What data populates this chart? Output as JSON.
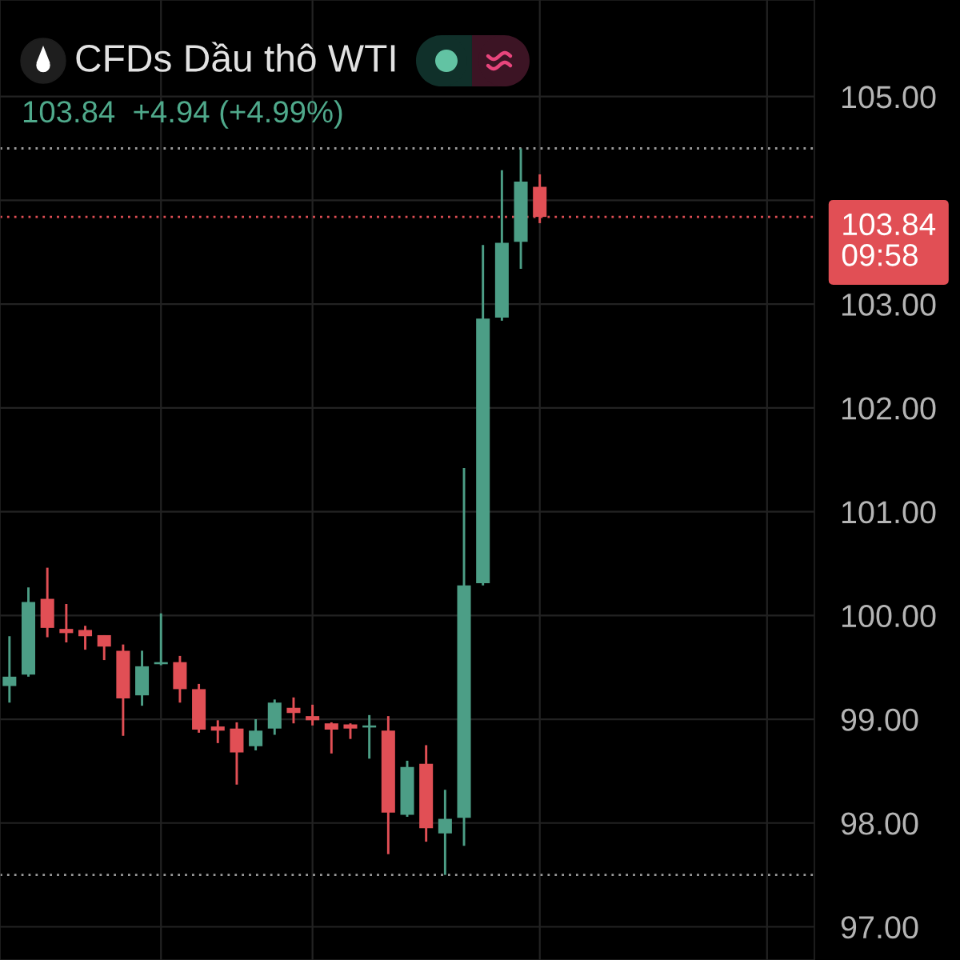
{
  "chart_data": {
    "type": "candlestick",
    "title": "CFDs Dầu thô WTI",
    "subtitle": "103.84  +4.94 (+4.99%)",
    "categories": [
      null,
      null,
      null,
      null,
      null,
      null,
      null,
      null,
      null,
      null,
      null,
      null,
      null,
      null,
      null,
      null,
      null,
      null,
      null,
      null,
      null,
      null,
      null,
      null,
      null,
      null,
      null,
      null,
      null,
      null,
      null,
      null,
      null,
      null,
      null,
      null,
      null,
      null,
      null,
      null,
      null,
      null,
      null
    ],
    "ohlc": [
      [
        99.32,
        99.8,
        99.16,
        99.41
      ],
      [
        99.43,
        100.27,
        99.41,
        100.13
      ],
      [
        100.16,
        100.46,
        99.79,
        99.88
      ],
      [
        99.87,
        100.11,
        99.74,
        99.83
      ],
      [
        99.86,
        99.9,
        99.67,
        99.8
      ],
      [
        99.81,
        99.81,
        99.57,
        99.7
      ],
      [
        99.66,
        99.72,
        98.84,
        99.2
      ],
      [
        99.23,
        99.66,
        99.13,
        99.51
      ],
      [
        99.53,
        100.02,
        99.52,
        99.55
      ],
      [
        99.55,
        99.61,
        99.16,
        99.29
      ],
      [
        99.29,
        99.34,
        98.87,
        98.9
      ],
      [
        98.93,
        98.99,
        98.77,
        98.89
      ],
      [
        98.91,
        98.97,
        98.37,
        98.68
      ],
      [
        98.74,
        99.0,
        98.7,
        98.89
      ],
      [
        98.91,
        99.19,
        98.85,
        99.16
      ],
      [
        99.11,
        99.21,
        98.96,
        99.06
      ],
      [
        99.03,
        99.14,
        98.94,
        98.99
      ],
      [
        98.96,
        98.97,
        98.67,
        98.9
      ],
      [
        98.95,
        98.96,
        98.81,
        98.91
      ],
      [
        98.92,
        99.04,
        98.62,
        98.94
      ],
      [
        98.89,
        99.03,
        97.7,
        98.1
      ],
      [
        98.08,
        98.6,
        98.06,
        98.54
      ],
      [
        98.57,
        98.75,
        97.82,
        97.95
      ],
      [
        97.9,
        98.32,
        97.5,
        98.04
      ],
      [
        98.05,
        101.42,
        97.78,
        100.29
      ],
      [
        100.31,
        103.57,
        100.29,
        102.86
      ],
      [
        102.87,
        104.29,
        102.84,
        103.59
      ],
      [
        103.6,
        104.5,
        103.34,
        104.18
      ],
      [
        104.13,
        104.25,
        103.78,
        103.84
      ],
      null,
      null,
      null,
      null,
      null,
      null,
      null,
      null,
      null,
      null,
      null,
      null,
      null,
      null
    ],
    "colors": [
      "#4c9e86",
      "#4c9e86",
      "#e14f55",
      "#e14f55",
      "#e14f55",
      "#e14f55",
      "#e14f55",
      "#4c9e86",
      "#4c9e86",
      "#e14f55",
      "#e14f55",
      "#e14f55",
      "#e14f55",
      "#4c9e86",
      "#4c9e86",
      "#e14f55",
      "#e14f55",
      "#e14f55",
      "#e14f55",
      "#4c9e86",
      "#e14f55",
      "#4c9e86",
      "#e14f55",
      "#4c9e86",
      "#4c9e86",
      "#4c9e86",
      "#4c9e86",
      "#4c9e86",
      "#e14f55",
      null,
      null,
      null,
      null,
      null,
      null,
      null,
      null,
      null,
      null,
      null,
      null,
      null,
      null
    ],
    "ylim": [
      96.68,
      105.93
    ],
    "yticks": [
      {
        "value": 97,
        "label": "97.00"
      },
      {
        "value": 98,
        "label": "98.00"
      },
      {
        "value": 99,
        "label": "99.00"
      },
      {
        "value": 100,
        "label": "100.00"
      },
      {
        "value": 101,
        "label": "101.00"
      },
      {
        "value": 102,
        "label": "102.00"
      },
      {
        "value": 103,
        "label": "103.00"
      },
      {
        "value": 104,
        "label": null
      },
      {
        "value": 105,
        "label": "105.00"
      }
    ],
    "grid": true,
    "tick_labels": "y",
    "ref_lines": [
      {
        "axis": "y",
        "value": 104.5,
        "color": "#9a9a9a",
        "line_style": "dotted"
      },
      {
        "axis": "y",
        "value": 97.5,
        "color": "#9a9a9a",
        "line_style": "dotted"
      },
      {
        "axis": "y",
        "value": 103.84,
        "label": "103.84\n09:58",
        "color": "#e14f55",
        "line_style": "dotted"
      }
    ]
  }
}
